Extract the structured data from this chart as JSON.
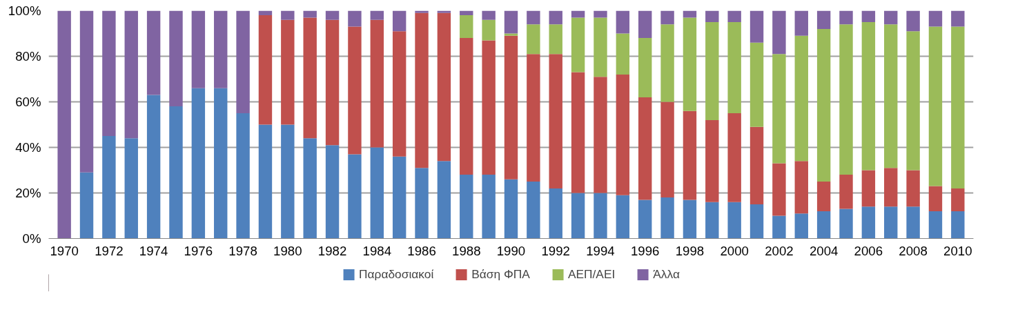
{
  "chart_data": {
    "type": "bar",
    "stacked": true,
    "categories": [
      "1970",
      null,
      "1972",
      null,
      "1974",
      null,
      "1976",
      null,
      "1978",
      null,
      "1980",
      null,
      "1982",
      null,
      "1984",
      null,
      "1986",
      null,
      "1988",
      null,
      "1990",
      null,
      "1992",
      null,
      "1994",
      null,
      "1996",
      null,
      "1998",
      null,
      "2000",
      null,
      "2002",
      null,
      "2004",
      null,
      "2006",
      null,
      "2008",
      null,
      "2010"
    ],
    "series": [
      {
        "name": "Παραδοσιακοί",
        "color": "#4f81bd",
        "values": [
          0,
          29,
          45,
          44,
          63,
          58,
          66,
          66,
          55,
          50,
          50,
          44,
          41,
          37,
          40,
          36,
          31,
          34,
          28,
          28,
          26,
          25,
          22,
          20,
          20,
          19,
          17,
          18,
          17,
          16,
          16,
          15,
          10,
          11,
          12,
          13,
          14,
          14,
          14,
          12,
          12
        ]
      },
      {
        "name": "Βάση ΦΠΑ",
        "color": "#c0504d",
        "values": [
          0,
          0,
          0,
          0,
          0,
          0,
          0,
          0,
          0,
          48,
          46,
          53,
          55,
          56,
          56,
          55,
          68,
          65,
          60,
          59,
          63,
          56,
          59,
          53,
          51,
          53,
          45,
          42,
          39,
          36,
          39,
          34,
          23,
          23,
          13,
          15,
          16,
          17,
          16,
          11,
          10
        ]
      },
      {
        "name": "ΑΕΠ/ΑΕΙ",
        "color": "#9bbb59",
        "values": [
          0,
          0,
          0,
          0,
          0,
          0,
          0,
          0,
          0,
          0,
          0,
          0,
          0,
          0,
          0,
          0,
          0,
          0,
          10,
          9,
          1,
          13,
          13,
          24,
          26,
          18,
          26,
          34,
          41,
          43,
          40,
          37,
          48,
          55,
          67,
          66,
          65,
          63,
          61,
          70,
          71
        ]
      },
      {
        "name": "Άλλα",
        "color": "#8064a2",
        "values": [
          100,
          71,
          55,
          56,
          37,
          42,
          34,
          34,
          45,
          2,
          4,
          3,
          4,
          7,
          4,
          9,
          1,
          1,
          2,
          4,
          10,
          6,
          6,
          3,
          3,
          10,
          12,
          6,
          3,
          5,
          5,
          14,
          19,
          11,
          8,
          6,
          5,
          6,
          9,
          7,
          7
        ]
      }
    ],
    "ylim": [
      0,
      100
    ],
    "yticks": [
      {
        "value": 0,
        "label": "0%"
      },
      {
        "value": 20,
        "label": "20%"
      },
      {
        "value": 40,
        "label": "40%"
      },
      {
        "value": 60,
        "label": "60%"
      },
      {
        "value": 80,
        "label": "80%"
      },
      {
        "value": 100,
        "label": "100%"
      }
    ],
    "grid": "y",
    "legend": "bottom"
  }
}
